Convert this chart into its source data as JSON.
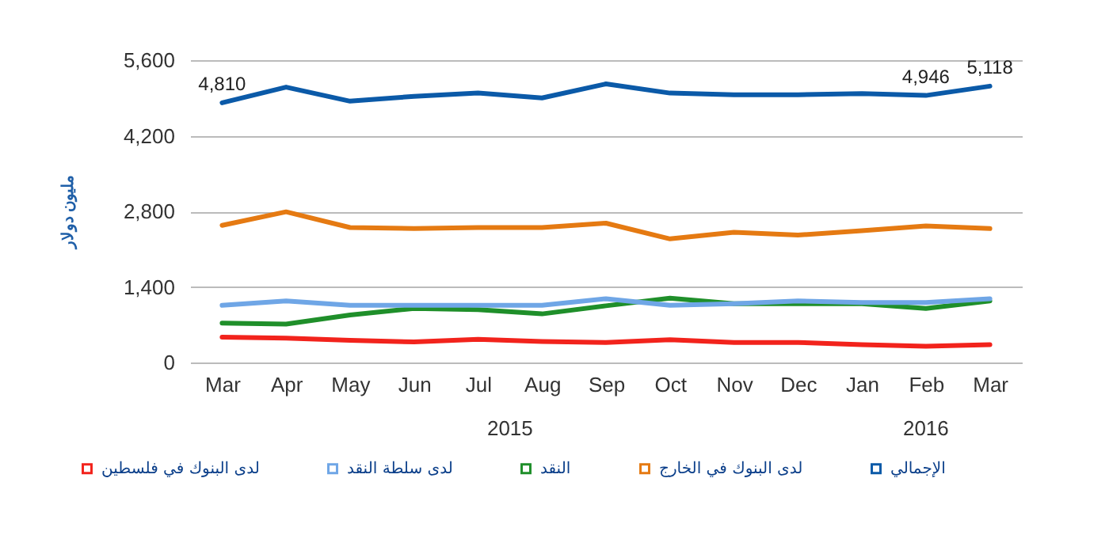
{
  "chart_data": {
    "type": "line",
    "ylabel": "مليون دولار",
    "categories": [
      "Mar",
      "Apr",
      "May",
      "Jun",
      "Jul",
      "Aug",
      "Sep",
      "Oct",
      "Nov",
      "Dec",
      "Jan",
      "Feb",
      "Mar"
    ],
    "series": [
      {
        "name": "الإجمالي",
        "color": "#0b5aa8",
        "values": [
          4810,
          5100,
          4840,
          4930,
          4990,
          4900,
          5160,
          4990,
          4960,
          4960,
          4980,
          4946,
          5118
        ],
        "value_labels": [
          "4,810",
          null,
          null,
          null,
          null,
          null,
          null,
          null,
          null,
          null,
          null,
          "4,946",
          "5,118"
        ]
      },
      {
        "name": "لدى البنوك في الخارج",
        "color": "#e57a12",
        "values": [
          2540,
          2790,
          2500,
          2480,
          2500,
          2500,
          2580,
          2290,
          2410,
          2360,
          2440,
          2530,
          2480
        ]
      },
      {
        "name": "النقد",
        "color": "#1f8f2a",
        "values": [
          730,
          710,
          880,
          1000,
          980,
          900,
          1050,
          1190,
          1090,
          1090,
          1090,
          1000,
          1140
        ]
      },
      {
        "name": "لدى سلطة النقد",
        "color": "#6fa6e6",
        "values": [
          1060,
          1140,
          1060,
          1060,
          1060,
          1060,
          1180,
          1060,
          1090,
          1140,
          1110,
          1110,
          1180
        ]
      },
      {
        "name": "لدى البنوك في فلسطين",
        "color": "#f2231c",
        "values": [
          470,
          450,
          410,
          380,
          430,
          390,
          370,
          420,
          370,
          370,
          330,
          300,
          330
        ]
      }
    ],
    "ylim": [
      0,
      5600
    ],
    "yticks": [
      0,
      {
        "value": 1400,
        "label": "1,400"
      },
      {
        "value": 2800,
        "label": "2,800"
      },
      {
        "value": 4200,
        "label": "4,200"
      },
      {
        "value": 5600,
        "label": "5,600"
      }
    ],
    "grid": "y",
    "legend": "bottom",
    "marker": "none",
    "line_style": "solid",
    "annotations": [
      "2015",
      "2016"
    ]
  }
}
